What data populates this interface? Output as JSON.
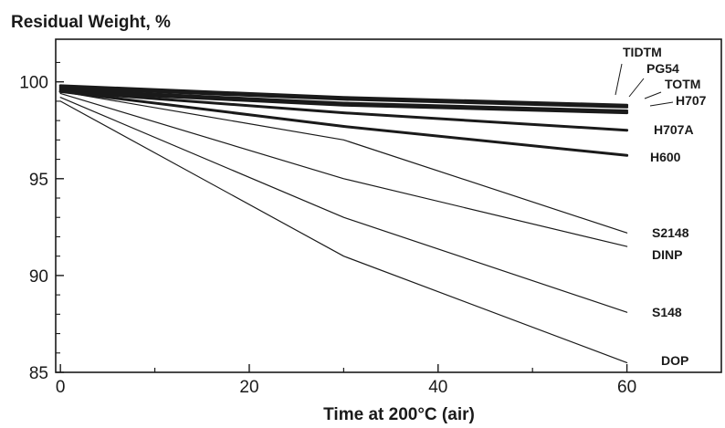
{
  "chart_data": {
    "type": "line",
    "title": "",
    "ylabel": "Residual Weight, %",
    "xlabel": "Time at 200°C (air)",
    "xlim": [
      -0.5,
      70
    ],
    "ylim": [
      85,
      102.2
    ],
    "xticks": [
      0,
      20,
      40,
      60
    ],
    "yticks": [
      85,
      90,
      95,
      100
    ],
    "x_tick_labels": [
      "0",
      "20",
      "40",
      "60"
    ],
    "y_tick_labels": [
      "85",
      "90",
      "95",
      "100"
    ],
    "grid": false,
    "legend": "direct labels at line ends",
    "series": [
      {
        "name": "TIDTM",
        "x": [
          0,
          30,
          60
        ],
        "y": [
          99.8,
          99.2,
          98.8
        ],
        "bold": true
      },
      {
        "name": "PG54",
        "x": [
          0,
          30,
          60
        ],
        "y": [
          99.7,
          99.1,
          98.7
        ],
        "bold": true
      },
      {
        "name": "TOTM",
        "x": [
          0,
          30,
          60
        ],
        "y": [
          99.6,
          98.9,
          98.5
        ],
        "bold": true
      },
      {
        "name": "H707",
        "x": [
          0,
          30,
          60
        ],
        "y": [
          99.5,
          98.8,
          98.4
        ],
        "bold": true
      },
      {
        "name": "H707A",
        "x": [
          0,
          30,
          60
        ],
        "y": [
          99.5,
          98.4,
          97.5
        ],
        "bold": true
      },
      {
        "name": "H600",
        "x": [
          0,
          30,
          60
        ],
        "y": [
          99.5,
          97.7,
          96.2
        ],
        "bold": true
      },
      {
        "name": "S2148",
        "x": [
          0,
          30,
          60
        ],
        "y": [
          99.5,
          97.0,
          92.2
        ],
        "bold": false
      },
      {
        "name": "DINP",
        "x": [
          0,
          30,
          60
        ],
        "y": [
          99.4,
          95.0,
          91.5
        ],
        "bold": false
      },
      {
        "name": "S148",
        "x": [
          0,
          30,
          60
        ],
        "y": [
          99.2,
          93.0,
          88.1
        ],
        "bold": false
      },
      {
        "name": "DOP",
        "x": [
          0,
          30,
          60
        ],
        "y": [
          99.0,
          91.0,
          85.5
        ],
        "bold": false
      }
    ]
  }
}
